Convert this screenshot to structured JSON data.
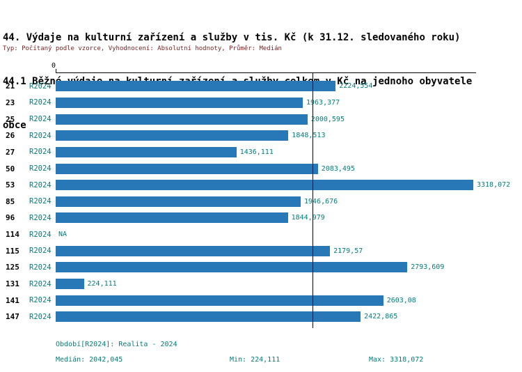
{
  "header": {
    "title_line1": "44. Výdaje na kulturní zařízení a služby v tis. Kč (k 31.12. sledovaného roku)",
    "title_line2": "44.1 Běžné výdaje na kulturní zařízení a služby celkem v Kč na jednoho obyvatele",
    "title_line3": "obce",
    "subtitle": "Typ: Počítaný podle vzorce, Vyhodnocení: Absolutní hodnoty, Průměr: Medián"
  },
  "chart_data": {
    "type": "bar",
    "orientation": "horizontal",
    "title": "44.1 Běžné výdaje na kulturní zařízení a služby celkem v Kč na jednoho obyvatele obce",
    "axis_zero_label": "0",
    "period_label": "R2024",
    "categories": [
      "21",
      "23",
      "25",
      "26",
      "27",
      "50",
      "53",
      "85",
      "96",
      "114",
      "115",
      "125",
      "131",
      "141",
      "147"
    ],
    "values": [
      2224.554,
      1963.377,
      2000.595,
      1848.513,
      1436.111,
      2083.495,
      3318.072,
      1946.676,
      1844.979,
      null,
      2179.57,
      2793.609,
      224.111,
      2603.08,
      2422.865
    ],
    "value_labels": [
      "2224,554",
      "1963,377",
      "2000,595",
      "1848,513",
      "1436,111",
      "2083,495",
      "3318,072",
      "1946,676",
      "1844,979",
      "NA",
      "2179,57",
      "2793,609",
      "224,111",
      "2603,08",
      "2422,865"
    ],
    "xlim": [
      0,
      3318.072
    ],
    "median_value": 2042.045,
    "median_line": true,
    "grid": false,
    "legend": false,
    "bar_color": "#2878b8",
    "label_color": "#007d7d"
  },
  "footer": {
    "period": "Období[R2024]: Realita - 2024",
    "median": "Medián: 2042,045",
    "min": "Min: 224,111",
    "max": "Max: 3318,072"
  }
}
